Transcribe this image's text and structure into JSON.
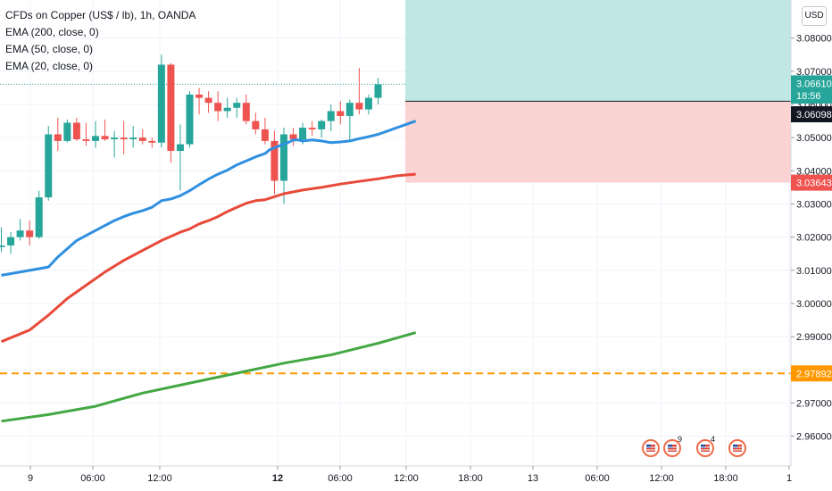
{
  "legend": {
    "title": "CFDs on Copper (US$ / lb), 1h, OANDA",
    "ema200": "EMA (200, close, 0)",
    "ema50": "EMA (50, close, 0)",
    "ema20": "EMA (20, close, 0)"
  },
  "currency_button": "USD",
  "colors": {
    "up": "#26a69a",
    "down": "#ef5350",
    "ema20": "#2f8fe0",
    "ema50": "#e84a3a",
    "ema200": "#43a843",
    "support": "#ff9800",
    "target_zone": "#bfe8e4",
    "stop_zone": "#fbd3d3"
  },
  "chart_data": {
    "type": "candlestick",
    "y_ticks": [
      "3.08000",
      "3.07000",
      "3.06000",
      "3.05000",
      "3.04000",
      "3.03000",
      "3.02000",
      "3.01000",
      "3.00000",
      "2.99000",
      "2.98000",
      "2.97000",
      "2.96000"
    ],
    "x_ticks": [
      "9",
      "06:00",
      "12:00",
      "12",
      "06:00",
      "12:00",
      "18:00",
      "13",
      "06:00",
      "12:00",
      "18:00",
      "1"
    ],
    "ylim": [
      2.951,
      3.0915
    ],
    "price_labels": [
      {
        "value": "3.06610",
        "kind": "last_price"
      },
      {
        "value": "18:56",
        "kind": "countdown"
      },
      {
        "value": "3.06098",
        "kind": "position_entry"
      },
      {
        "value": "3.03643",
        "kind": "stop_loss"
      },
      {
        "value": "2.97892",
        "kind": "support"
      }
    ],
    "position": {
      "entry": 3.06098,
      "stop": 3.03643,
      "target_top": 3.0915
    },
    "support_level": 2.97892,
    "candles": [
      {
        "o": 3.017,
        "h": 3.023,
        "l": 3.0155,
        "c": 3.0175
      },
      {
        "o": 3.0175,
        "h": 3.0215,
        "l": 3.015,
        "c": 3.02
      },
      {
        "o": 3.02,
        "h": 3.0255,
        "l": 3.019,
        "c": 3.022
      },
      {
        "o": 3.022,
        "h": 3.025,
        "l": 3.0175,
        "c": 3.02
      },
      {
        "o": 3.02,
        "h": 3.034,
        "l": 3.0195,
        "c": 3.032
      },
      {
        "o": 3.032,
        "h": 3.0535,
        "l": 3.031,
        "c": 3.051
      },
      {
        "o": 3.051,
        "h": 3.056,
        "l": 3.046,
        "c": 3.049
      },
      {
        "o": 3.049,
        "h": 3.0555,
        "l": 3.0485,
        "c": 3.0545
      },
      {
        "o": 3.0545,
        "h": 3.056,
        "l": 3.049,
        "c": 3.0495
      },
      {
        "o": 3.0495,
        "h": 3.0545,
        "l": 3.0475,
        "c": 3.049
      },
      {
        "o": 3.049,
        "h": 3.055,
        "l": 3.047,
        "c": 3.0505
      },
      {
        "o": 3.0505,
        "h": 3.0555,
        "l": 3.049,
        "c": 3.0495
      },
      {
        "o": 3.0495,
        "h": 3.052,
        "l": 3.044,
        "c": 3.05
      },
      {
        "o": 3.05,
        "h": 3.055,
        "l": 3.045,
        "c": 3.0495
      },
      {
        "o": 3.0495,
        "h": 3.0535,
        "l": 3.047,
        "c": 3.05
      },
      {
        "o": 3.05,
        "h": 3.0525,
        "l": 3.048,
        "c": 3.049
      },
      {
        "o": 3.049,
        "h": 3.05,
        "l": 3.047,
        "c": 3.0485
      },
      {
        "o": 3.0485,
        "h": 3.075,
        "l": 3.047,
        "c": 3.072
      },
      {
        "o": 3.072,
        "h": 3.0725,
        "l": 3.0425,
        "c": 3.046
      },
      {
        "o": 3.046,
        "h": 3.054,
        "l": 3.034,
        "c": 3.048
      },
      {
        "o": 3.048,
        "h": 3.064,
        "l": 3.047,
        "c": 3.063
      },
      {
        "o": 3.063,
        "h": 3.065,
        "l": 3.057,
        "c": 3.062
      },
      {
        "o": 3.062,
        "h": 3.064,
        "l": 3.0575,
        "c": 3.0605
      },
      {
        "o": 3.0605,
        "h": 3.064,
        "l": 3.055,
        "c": 3.058
      },
      {
        "o": 3.058,
        "h": 3.062,
        "l": 3.056,
        "c": 3.059
      },
      {
        "o": 3.059,
        "h": 3.062,
        "l": 3.056,
        "c": 3.0605
      },
      {
        "o": 3.0605,
        "h": 3.063,
        "l": 3.054,
        "c": 3.055
      },
      {
        "o": 3.055,
        "h": 3.0575,
        "l": 3.051,
        "c": 3.0525
      },
      {
        "o": 3.0525,
        "h": 3.056,
        "l": 3.048,
        "c": 3.049
      },
      {
        "o": 3.049,
        "h": 3.052,
        "l": 3.033,
        "c": 3.037
      },
      {
        "o": 3.037,
        "h": 3.053,
        "l": 3.03,
        "c": 3.051
      },
      {
        "o": 3.051,
        "h": 3.053,
        "l": 3.0475,
        "c": 3.0495
      },
      {
        "o": 3.0495,
        "h": 3.0545,
        "l": 3.048,
        "c": 3.053
      },
      {
        "o": 3.053,
        "h": 3.055,
        "l": 3.0505,
        "c": 3.0525
      },
      {
        "o": 3.0525,
        "h": 3.0555,
        "l": 3.05,
        "c": 3.055
      },
      {
        "o": 3.055,
        "h": 3.06,
        "l": 3.052,
        "c": 3.058
      },
      {
        "o": 3.058,
        "h": 3.061,
        "l": 3.054,
        "c": 3.0565
      },
      {
        "o": 3.0565,
        "h": 3.0615,
        "l": 3.049,
        "c": 3.0605
      },
      {
        "o": 3.0605,
        "h": 3.071,
        "l": 3.057,
        "c": 3.0585
      },
      {
        "o": 3.0585,
        "h": 3.063,
        "l": 3.057,
        "c": 3.062
      },
      {
        "o": 3.062,
        "h": 3.068,
        "l": 3.06,
        "c": 3.0661
      }
    ],
    "series": [
      {
        "key": "ema20",
        "values": [
          [
            0,
            3.0085
          ],
          [
            5,
            3.011
          ],
          [
            6,
            3.014
          ],
          [
            8,
            3.019
          ],
          [
            9,
            3.0205
          ],
          [
            10,
            3.022
          ],
          [
            11,
            3.0235
          ],
          [
            12,
            3.025
          ],
          [
            13,
            3.0262
          ],
          [
            14,
            3.0272
          ],
          [
            15,
            3.028
          ],
          [
            16,
            3.029
          ],
          [
            17,
            3.031
          ],
          [
            18,
            3.0315
          ],
          [
            19,
            3.0325
          ],
          [
            20,
            3.034
          ],
          [
            21,
            3.0358
          ],
          [
            22,
            3.0375
          ],
          [
            23,
            3.039
          ],
          [
            24,
            3.0402
          ],
          [
            25,
            3.0418
          ],
          [
            26,
            3.043
          ],
          [
            27,
            3.0442
          ],
          [
            28,
            3.0452
          ],
          [
            28.5,
            3.0464
          ],
          [
            29.5,
            3.0475
          ],
          [
            30.5,
            3.0486
          ],
          [
            31,
            3.0493
          ],
          [
            31.5,
            3.0493
          ],
          [
            32,
            3.049
          ],
          [
            33,
            3.0493
          ],
          [
            34,
            3.049
          ],
          [
            35,
            3.0485
          ],
          [
            36,
            3.0487
          ],
          [
            37,
            3.049
          ],
          [
            38,
            3.0497
          ],
          [
            39,
            3.0503
          ],
          [
            40,
            3.051
          ],
          [
            41,
            3.052
          ],
          [
            42,
            3.053
          ],
          [
            43,
            3.054
          ],
          [
            44,
            3.055
          ]
        ]
      },
      {
        "key": "ema50",
        "values": [
          [
            0,
            2.9885
          ],
          [
            3,
            2.992
          ],
          [
            5,
            2.9965
          ],
          [
            7,
            3.0015
          ],
          [
            9,
            3.0055
          ],
          [
            11,
            3.0095
          ],
          [
            13,
            3.013
          ],
          [
            15,
            3.016
          ],
          [
            17,
            3.019
          ],
          [
            19,
            3.0215
          ],
          [
            20,
            3.0225
          ],
          [
            21,
            3.024
          ],
          [
            22,
            3.025
          ],
          [
            23,
            3.0262
          ],
          [
            24,
            3.0277
          ],
          [
            25,
            3.029
          ],
          [
            26,
            3.0302
          ],
          [
            27,
            3.031
          ],
          [
            28,
            3.0313
          ],
          [
            29,
            3.0322
          ],
          [
            30,
            3.0331
          ],
          [
            32,
            3.0342
          ],
          [
            34,
            3.035
          ],
          [
            36,
            3.036
          ],
          [
            38,
            3.0368
          ],
          [
            40,
            3.0376
          ],
          [
            42,
            3.0385
          ],
          [
            44,
            3.039
          ]
        ]
      },
      {
        "key": "ema200",
        "values": [
          [
            0,
            2.9645
          ],
          [
            5,
            2.9665
          ],
          [
            10,
            2.969
          ],
          [
            15,
            2.973
          ],
          [
            20,
            2.976
          ],
          [
            25,
            2.979
          ],
          [
            30,
            2.982
          ],
          [
            35,
            2.9845
          ],
          [
            40,
            2.988
          ],
          [
            44,
            2.9912
          ]
        ]
      }
    ],
    "events": [
      {
        "label": ""
      },
      {
        "label": "9"
      },
      {
        "label": "4"
      },
      {
        "label": ""
      }
    ],
    "grid": true,
    "legend_position": "top-left"
  }
}
